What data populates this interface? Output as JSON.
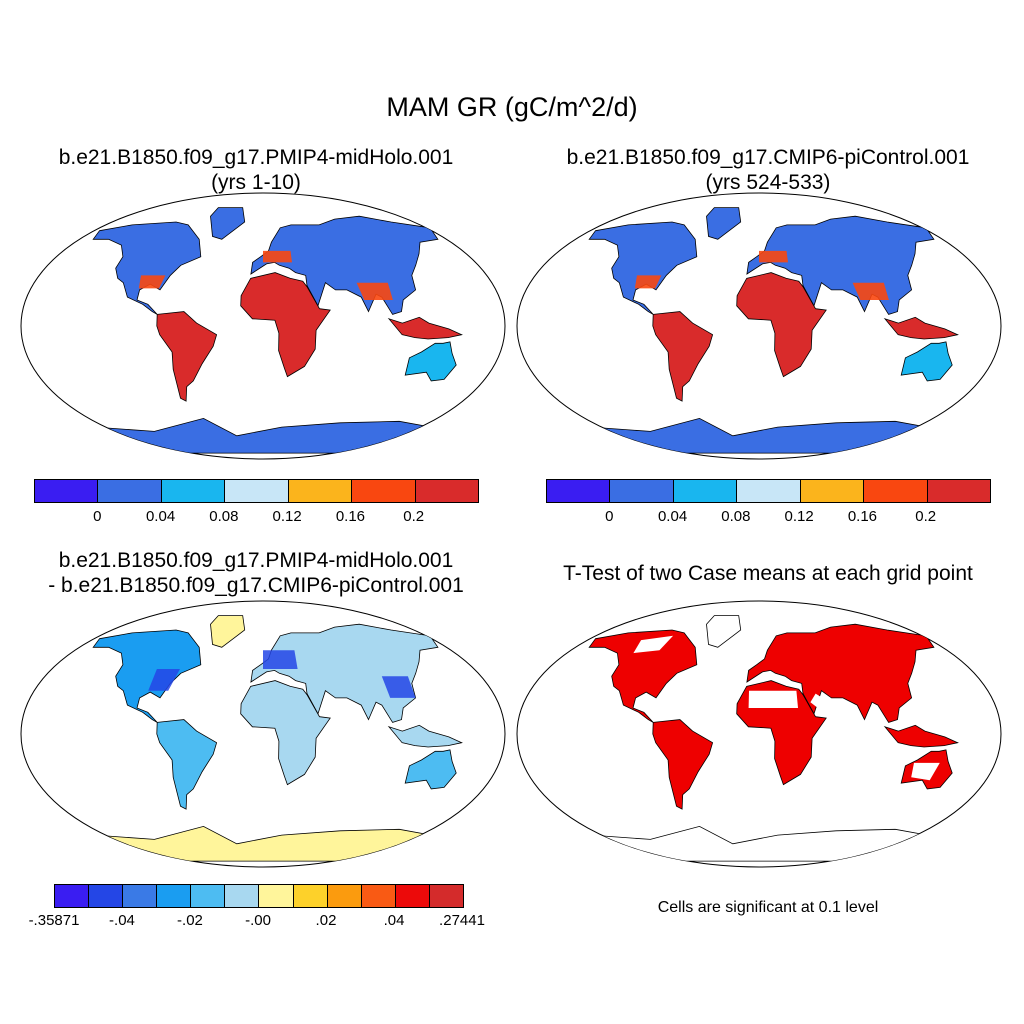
{
  "figure": {
    "title": "MAM GR (gC/m^2/d)"
  },
  "panels": {
    "top_left": {
      "title_line1": "b.e21.B1850.f09_g17.PMIP4-midHolo.001",
      "title_line2": "(yrs 1-10)"
    },
    "top_right": {
      "title_line1": "b.e21.B1850.f09_g17.CMIP6-piControl.001",
      "title_line2": "(yrs 524-533)"
    },
    "bottom_left": {
      "title_line1": "b.e21.B1850.f09_g17.PMIP4-midHolo.001",
      "title_line2": "- b.e21.B1850.f09_g17.CMIP6-piControl.001"
    },
    "bottom_right": {
      "title": "T-Test of two Case means at each grid point",
      "footnote": "Cells are significant at 0.1 level"
    }
  },
  "colorbar_abs": {
    "colors": [
      "#3a1df2",
      "#3a6ee3",
      "#19b6ef",
      "#c8e6f7",
      "#fbb41c",
      "#f94710",
      "#d92b2b"
    ],
    "labels": [
      "0",
      "0.04",
      "0.08",
      "0.12",
      "0.16",
      "0.2"
    ]
  },
  "colorbar_diff": {
    "colors": [
      "#3a1df2",
      "#2446e6",
      "#3a7ae6",
      "#1a9df1",
      "#4dbcf2",
      "#a8d8f0",
      "#fff59b",
      "#fdd12a",
      "#fb9b0e",
      "#f95a14",
      "#ec0a0a",
      "#d42b2b"
    ],
    "labels": [
      "-.35871",
      "-.04",
      "-.02",
      "-.00",
      ".02",
      ".04",
      ".27441"
    ]
  },
  "map_colors": {
    "ocean": "#ffffff",
    "coast": "#000000",
    "significant": "#ee0000"
  }
}
